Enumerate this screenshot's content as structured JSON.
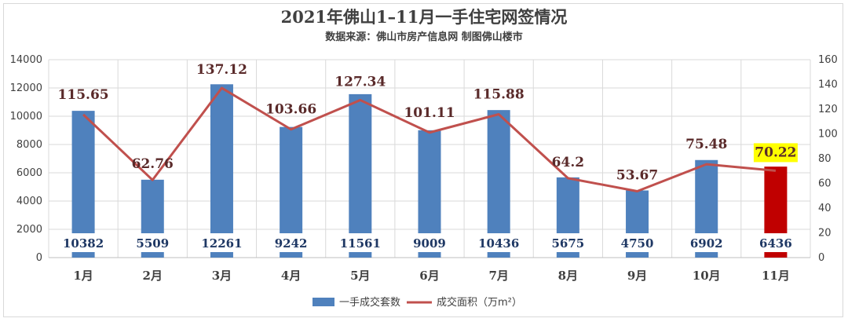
{
  "title": "2021年佛山1–11月一手住宅网签情况",
  "subtitle": "数据来源：佛山市房产信息网    制图佛山楼市",
  "chart_data": {
    "type": "bar",
    "categories": [
      "1月",
      "2月",
      "3月",
      "4月",
      "5月",
      "6月",
      "7月",
      "8月",
      "9月",
      "10月",
      "11月"
    ],
    "series": [
      {
        "name": "一手成交套数",
        "type": "bar",
        "axis": "left",
        "values": [
          10382,
          5509,
          12261,
          9242,
          11561,
          9009,
          10436,
          5675,
          4750,
          6902,
          6436
        ],
        "labels": [
          "10382",
          "5509",
          "12261",
          "9242",
          "11561",
          "9009",
          "10436",
          "5675",
          "4750",
          "6902",
          "6436"
        ],
        "color": "#4f81bd",
        "highlight_index": 10,
        "highlight_color": "#c00000"
      },
      {
        "name": "成交面积（万m²）",
        "type": "line",
        "axis": "right",
        "values": [
          115.65,
          62.76,
          137.12,
          103.66,
          127.34,
          101.11,
          115.88,
          64.2,
          53.67,
          75.48,
          70.22
        ],
        "labels": [
          "115.65",
          "62.76",
          "137.12",
          "103.66",
          "127.34",
          "101.11",
          "115.88",
          "64.2",
          "53.67",
          "75.48",
          "70.22"
        ],
        "color": "#c0504d",
        "highlight_index": 10,
        "highlight_bg": "#ffff00"
      }
    ],
    "y_left": {
      "min": 0,
      "max": 14000,
      "ticks": [
        "0",
        "2000",
        "4000",
        "6000",
        "8000",
        "10000",
        "12000",
        "14000"
      ]
    },
    "y_right": {
      "min": 0,
      "max": 160,
      "ticks": [
        "0",
        "20",
        "40",
        "60",
        "80",
        "100",
        "120",
        "140",
        "160"
      ]
    },
    "grid": true,
    "legend_position": "bottom"
  }
}
